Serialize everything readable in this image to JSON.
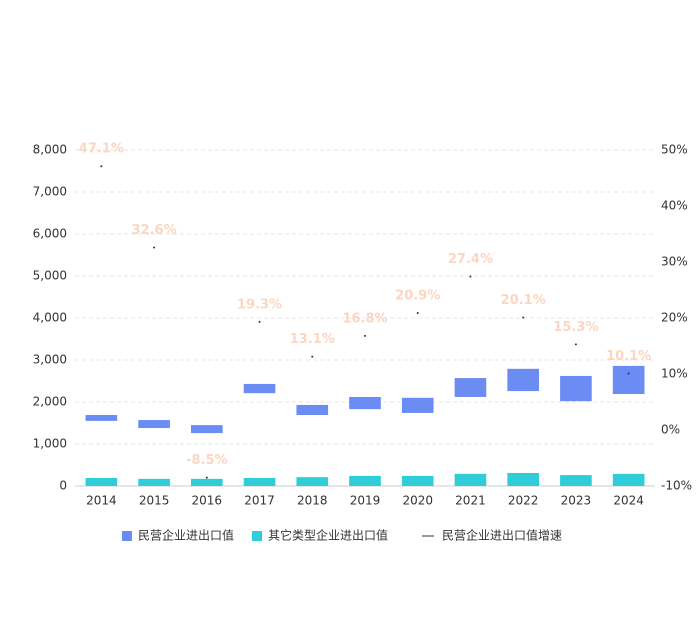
{
  "chart_data": {
    "type": "bar",
    "categories": [
      "2014",
      "2015",
      "2016",
      "2017",
      "2018",
      "2019",
      "2020",
      "2021",
      "2022",
      "2023",
      "2024"
    ],
    "series": [
      {
        "name": "民营企业进出口值",
        "color": "#6b8cf2",
        "ranges": [
          [
            1550,
            1690
          ],
          [
            1380,
            1570
          ],
          [
            1260,
            1450
          ],
          [
            2210,
            2430
          ],
          [
            1690,
            1930
          ],
          [
            1830,
            2120
          ],
          [
            1740,
            2100
          ],
          [
            2120,
            2570
          ],
          [
            2260,
            2790
          ],
          [
            2020,
            2620
          ],
          [
            2190,
            2860
          ]
        ]
      },
      {
        "name": "其它类型企业进出口值",
        "color": "#2ecdd8",
        "values": [
          190,
          170,
          170,
          190,
          210,
          240,
          240,
          290,
          310,
          260,
          290
        ]
      },
      {
        "name": "民营企业进出口值增速",
        "type": "line",
        "axis": "y2",
        "color": "#333333",
        "values": [
          47.1,
          32.6,
          -8.5,
          19.3,
          13.1,
          16.8,
          20.9,
          27.4,
          20.1,
          15.3,
          10.1
        ],
        "value_labels": [
          "47.1%",
          "32.6%",
          "-8.5%",
          "19.3%",
          "13.1%",
          "16.8%",
          "20.9%",
          "27.4%",
          "20.1%",
          "15.3%",
          "10.1%"
        ]
      }
    ],
    "ylim": [
      0,
      8000
    ],
    "yticks": [
      0,
      {
        "value": 1000,
        "label": "1,000"
      },
      {
        "value": 2000,
        "label": "2,000"
      },
      {
        "value": 3000,
        "label": "3,000"
      },
      {
        "value": 4000,
        "label": "4,000"
      },
      {
        "value": 5000,
        "label": "5,000"
      },
      {
        "value": 6000,
        "label": "6,000"
      },
      {
        "value": 7000,
        "label": "7,000"
      },
      {
        "value": 8000,
        "label": "8,000"
      }
    ],
    "y2lim": [
      -10,
      50
    ],
    "y2ticks": [
      {
        "value": -10,
        "label": "-10%"
      },
      {
        "value": 0,
        "label": "0%"
      },
      {
        "value": 10,
        "label": "10%"
      },
      {
        "value": 20,
        "label": "20%"
      },
      {
        "value": 30,
        "label": "30%"
      },
      {
        "value": 40,
        "label": "40%"
      },
      {
        "value": 50,
        "label": "50%"
      }
    ],
    "grid": true
  }
}
